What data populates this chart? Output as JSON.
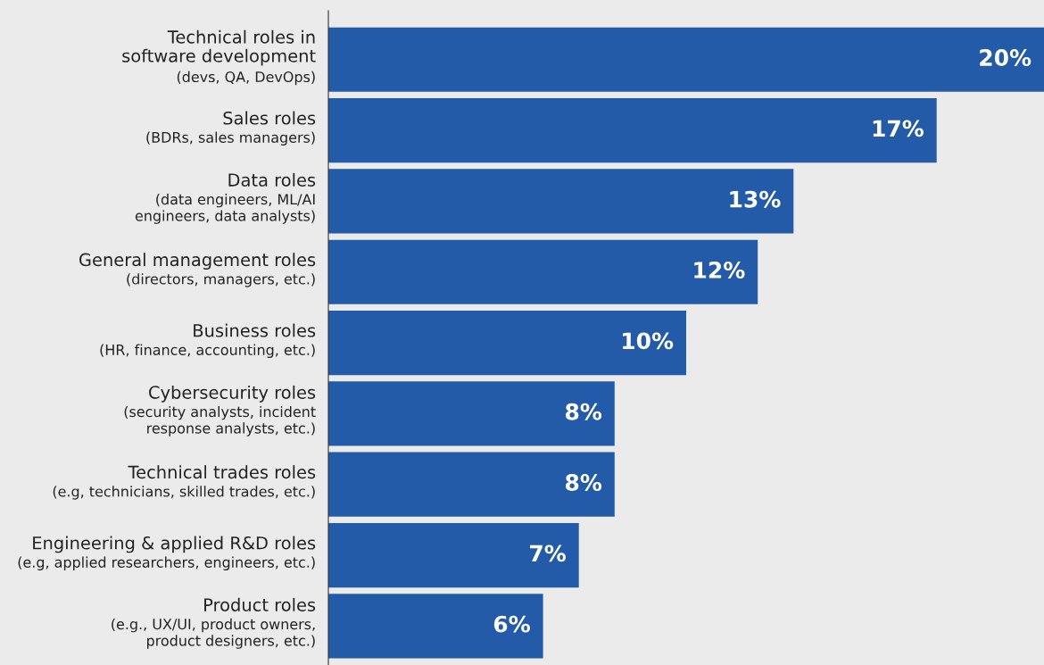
{
  "chart_data": {
    "type": "bar",
    "orientation": "horizontal",
    "categories": [
      "Technical roles in\nsoftware development\n(devs, QA, DevOps)",
      "Sales roles\n(BDRs, sales managers)",
      "Data roles\n(data engineers, ML/AI\nengineers, data analysts)",
      "General management roles\n(directors, managers, etc.)",
      "Business roles\n(HR, finance, accounting, etc.)",
      "Cybersecurity roles\n(security analysts, incident\nresponse analysts, etc.)",
      "Technical trades roles\n(e.g, technicians, skilled trades, etc.)",
      "Engineering & applied R&D roles\n(e.g, applied researchers, engineers, etc.)",
      "Product roles\n(e.g., UX/UI, product owners,\nproduct designers, etc.)"
    ],
    "values": [
      20,
      17,
      13,
      12,
      10,
      8,
      8,
      7,
      6
    ],
    "value_labels": [
      "20%",
      "17%",
      "13%",
      "12%",
      "10%",
      "8%",
      "8%",
      "7%",
      "6%"
    ],
    "color": "#245ba8"
  }
}
